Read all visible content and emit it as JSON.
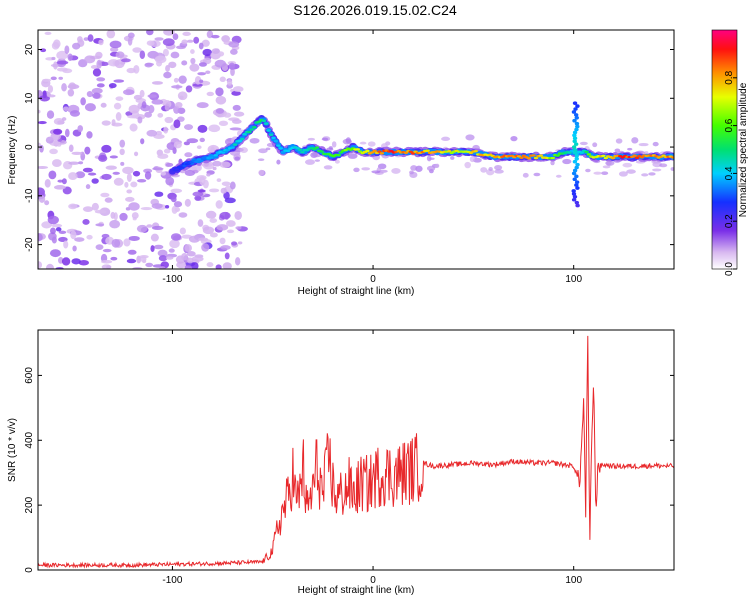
{
  "title": "S126.2026.019.15.02.C24",
  "chart_data": [
    {
      "type": "heatmap",
      "name": "spectrogram",
      "xlabel": "Height of straight line (km)",
      "ylabel": "Frequency (Hz)",
      "xlim": [
        -167,
        150
      ],
      "ylim": [
        -25,
        24
      ],
      "xticks": [
        -100,
        0,
        100
      ],
      "yticks": [
        -20,
        -10,
        0,
        10,
        20
      ],
      "colorbar": {
        "label": "Normalized spectral amplitude",
        "range": [
          0,
          1
        ],
        "ticks": [
          0.0,
          0.2,
          0.4,
          0.6,
          0.8
        ]
      },
      "ridge": {
        "x": [
          -100,
          -90,
          -80,
          -70,
          -60,
          -55,
          -50,
          -45,
          -40,
          -35,
          -30,
          -25,
          -20,
          -15,
          -10,
          -5,
          0,
          10,
          20,
          30,
          40,
          50,
          60,
          70,
          80,
          90,
          95,
          100,
          105,
          110,
          120,
          130,
          140,
          150
        ],
        "y": [
          -5,
          -3,
          -2,
          0,
          4,
          6,
          2,
          -1,
          0,
          -1,
          0,
          -1,
          -2,
          -1,
          0,
          -1,
          -1,
          -1,
          -1,
          -1,
          -1,
          -1,
          -2,
          -2,
          -2,
          -2,
          -1,
          -1,
          -1,
          -2,
          -2,
          -2,
          -2,
          -2
        ],
        "amp": [
          0.25,
          0.35,
          0.4,
          0.45,
          0.5,
          0.55,
          0.45,
          0.4,
          0.45,
          0.5,
          0.55,
          0.6,
          0.6,
          0.65,
          0.7,
          0.75,
          0.85,
          0.95,
          0.9,
          0.85,
          0.75,
          0.8,
          0.85,
          0.9,
          0.85,
          0.7,
          0.6,
          0.4,
          0.5,
          0.75,
          0.9,
          0.95,
          0.9,
          0.85
        ]
      },
      "noise_region_x": [
        -167,
        -65
      ]
    },
    {
      "type": "line",
      "name": "snr",
      "xlabel": "Height of straight line (km)",
      "ylabel": "SNR (10 * v/v)",
      "xlim": [
        -167,
        150
      ],
      "ylim": [
        0,
        740
      ],
      "xticks": [
        -100,
        0,
        100
      ],
      "yticks": [
        0,
        200,
        400,
        600
      ],
      "color": "#e8282b",
      "series": [
        {
          "name": "SNR",
          "x": [
            -167,
            -120,
            -80,
            -55,
            -50,
            -48,
            -45,
            -42,
            -40,
            -38,
            -36,
            -35,
            -33,
            -30,
            -28,
            -25,
            -22,
            -20,
            -18,
            -15,
            -12,
            -10,
            -8,
            -5,
            -2,
            0,
            5,
            10,
            15,
            20,
            25,
            30,
            40,
            50,
            60,
            70,
            80,
            90,
            100,
            103,
            105,
            106,
            107,
            108,
            109,
            110,
            111,
            112,
            113,
            115,
            120,
            130,
            140,
            150
          ],
          "y": [
            15,
            15,
            20,
            25,
            60,
            120,
            180,
            230,
            300,
            200,
            260,
            330,
            180,
            250,
            320,
            230,
            350,
            260,
            220,
            240,
            260,
            230,
            250,
            270,
            260,
            280,
            300,
            290,
            300,
            310,
            330,
            320,
            325,
            330,
            325,
            335,
            330,
            330,
            320,
            270,
            520,
            180,
            740,
            60,
            400,
            600,
            150,
            330,
            320,
            325,
            320,
            320,
            322,
            320
          ]
        }
      ]
    }
  ]
}
